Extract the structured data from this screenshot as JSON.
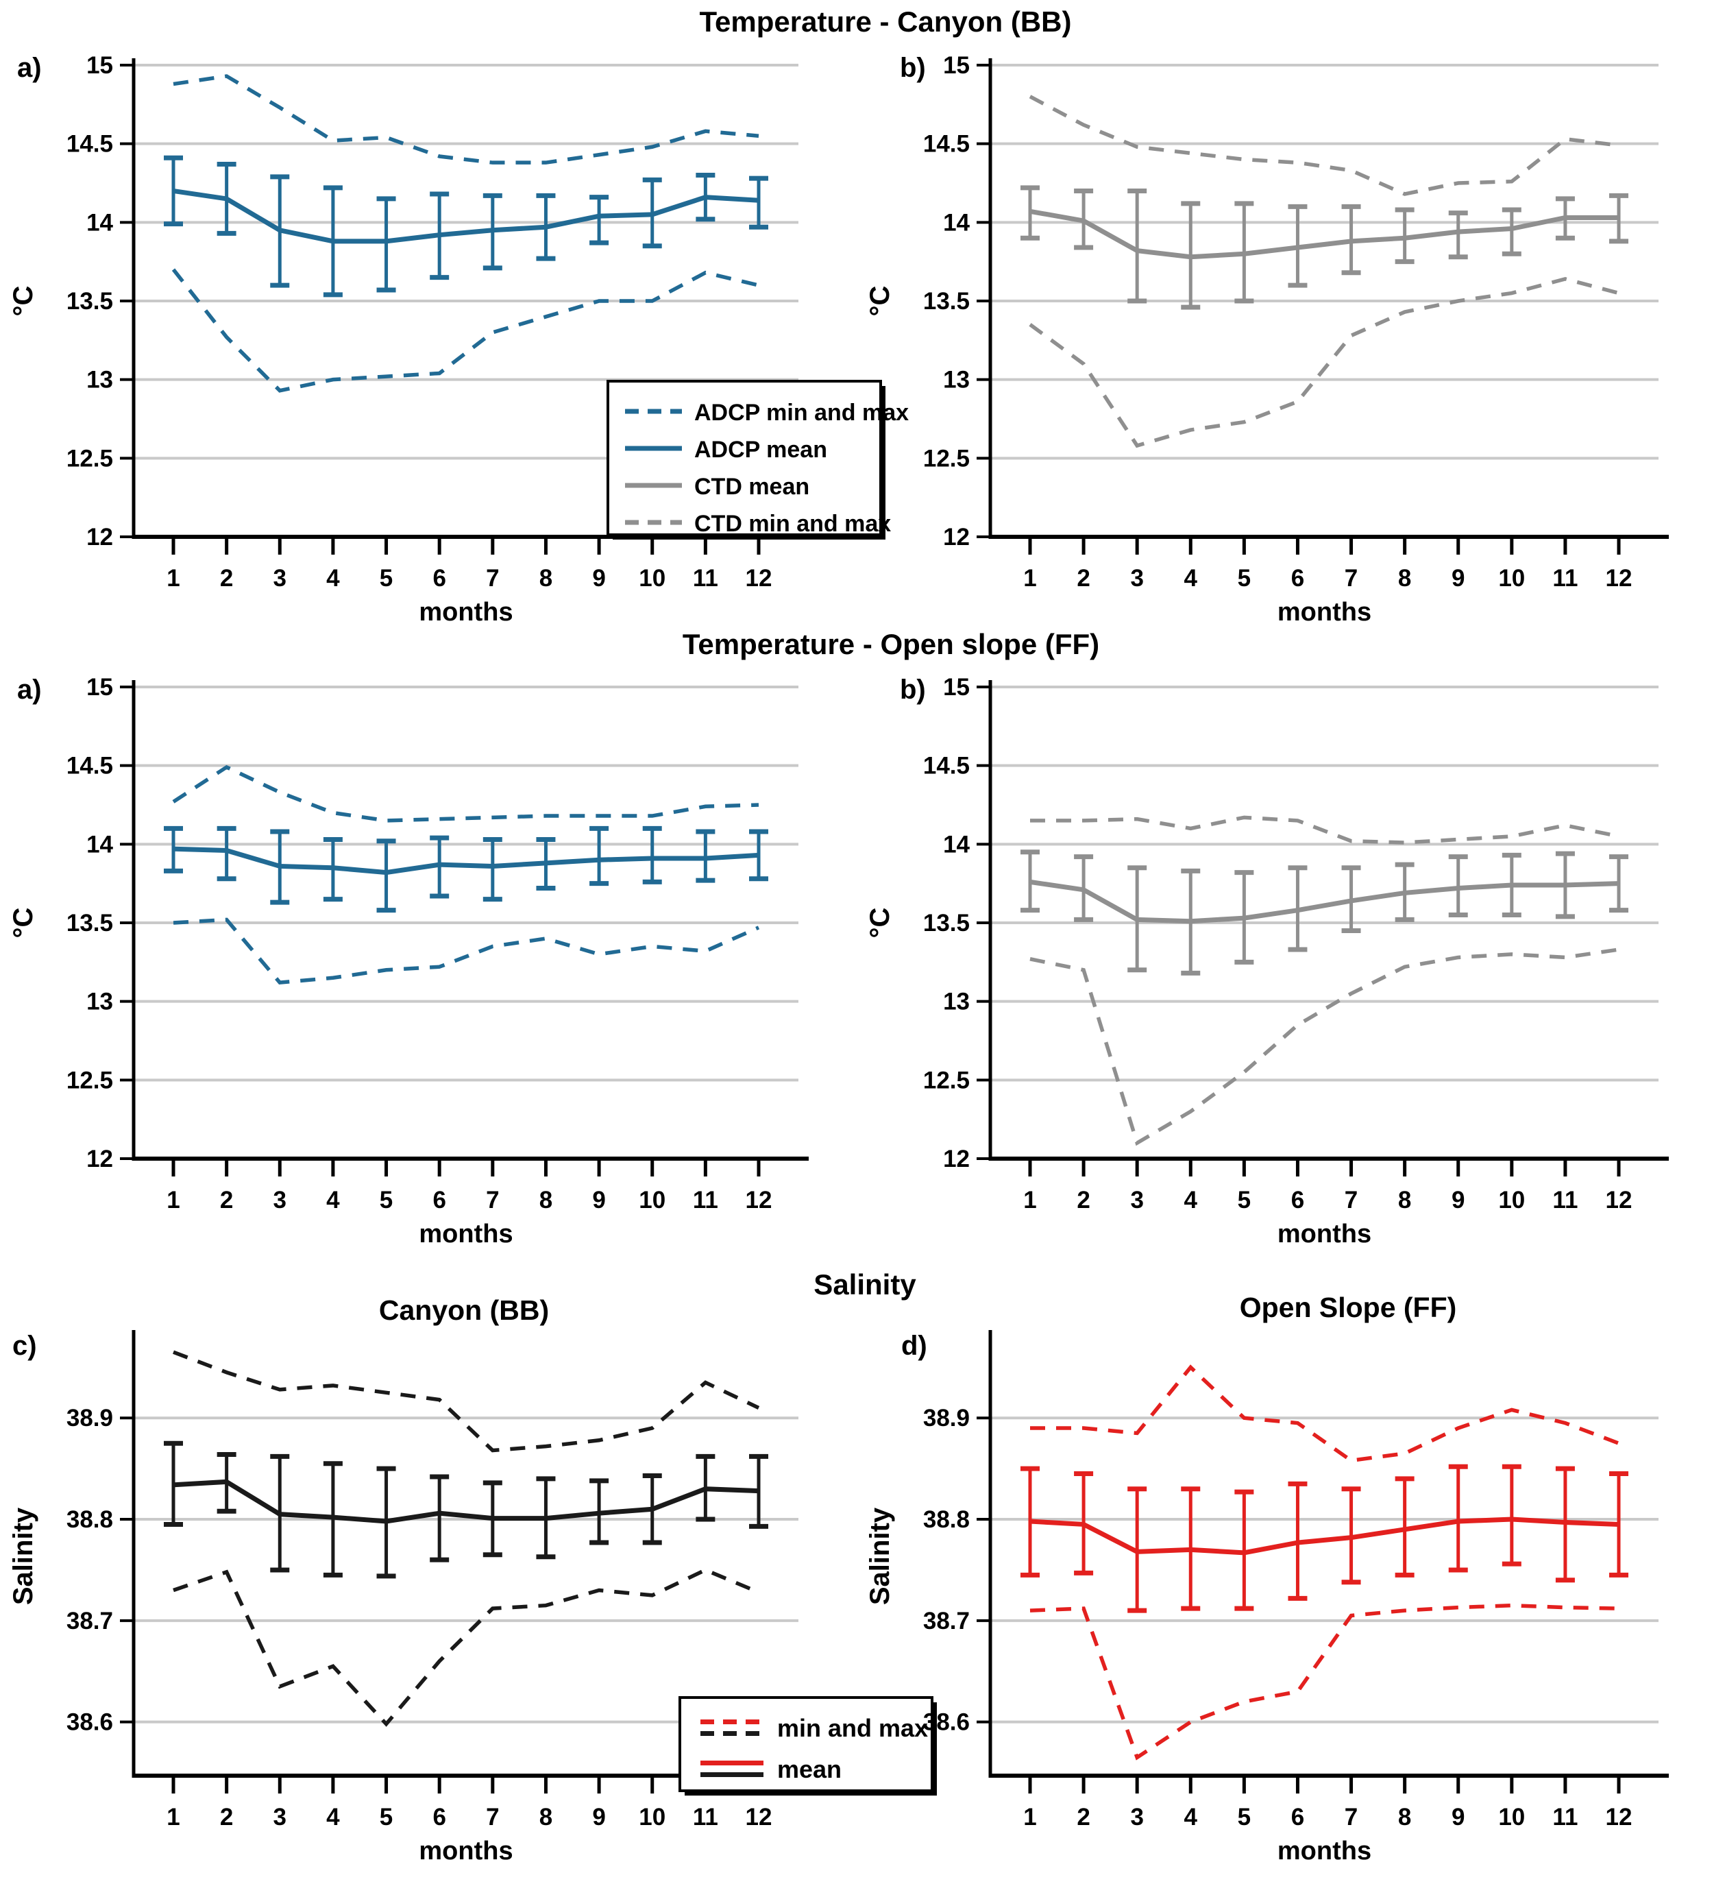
{
  "titles": {
    "row1": "Temperature - Canyon (BB)",
    "row2": "Temperature - Open slope (FF)",
    "row3": "Salinity",
    "row3_left": "Canyon (BB)",
    "row3_right": "Open Slope (FF)"
  },
  "colors": {
    "adcp_blue": "#216A94",
    "ctd_gray": "#8F8F8F",
    "salinity_black": "#1A1A1A",
    "salinity_red": "#E3201E",
    "grid": "#C9C9C9",
    "axis": "#000000"
  },
  "chart_data": [
    {
      "id": "temperature-canyon-bb-adcp",
      "panel_label": "a)",
      "type": "line",
      "title": "Temperature - Canyon (BB)",
      "xlabel": "months",
      "ylabel": "°C",
      "x": [
        1,
        2,
        3,
        4,
        5,
        6,
        7,
        8,
        9,
        10,
        11,
        12
      ],
      "x_labels": [
        "1",
        "2",
        "3",
        "4",
        "5",
        "6",
        "7",
        "8",
        "9",
        "10",
        "11",
        "12"
      ],
      "yticks": [
        "15",
        "14.5",
        "14",
        "13.5",
        "13",
        "12.5",
        "12"
      ],
      "ylim": [
        12,
        15
      ],
      "color": "#216A94",
      "series": [
        {
          "name": "max",
          "legend_label": "ADCP min and max",
          "style": "dashed",
          "values": [
            14.88,
            14.93,
            14.73,
            14.52,
            14.54,
            14.42,
            14.38,
            14.38,
            14.43,
            14.48,
            14.58,
            14.55
          ]
        },
        {
          "name": "mean",
          "legend_label": "ADCP mean",
          "style": "solid",
          "values": [
            14.2,
            14.15,
            13.95,
            13.88,
            13.88,
            13.92,
            13.95,
            13.97,
            14.04,
            14.05,
            14.16,
            14.14
          ],
          "err_lo": [
            13.99,
            13.93,
            13.6,
            13.54,
            13.57,
            13.65,
            13.71,
            13.77,
            13.87,
            13.85,
            14.02,
            13.97
          ],
          "err_hi": [
            14.41,
            14.37,
            14.29,
            14.22,
            14.15,
            14.18,
            14.17,
            14.17,
            14.16,
            14.27,
            14.3,
            14.28
          ]
        },
        {
          "name": "min",
          "legend_label": "ADCP min and max",
          "style": "dashed",
          "values": [
            13.7,
            13.27,
            12.93,
            13.0,
            13.02,
            13.04,
            13.3,
            13.4,
            13.5,
            13.5,
            13.68,
            13.6
          ]
        }
      ],
      "legend": {
        "position": "lower right",
        "entries": [
          {
            "label": "ADCP min and max",
            "color": "#216A94",
            "style": "dashed"
          },
          {
            "label": "ADCP mean",
            "color": "#216A94",
            "style": "solid"
          },
          {
            "label": "CTD mean",
            "color": "#8F8F8F",
            "style": "solid"
          },
          {
            "label": "CTD min and max",
            "color": "#8F8F8F",
            "style": "dashed"
          }
        ]
      }
    },
    {
      "id": "temperature-canyon-bb-ctd",
      "panel_label": "b)",
      "type": "line",
      "title": "Temperature - Canyon (BB)",
      "xlabel": "months",
      "ylabel": "°C",
      "x": [
        1,
        2,
        3,
        4,
        5,
        6,
        7,
        8,
        9,
        10,
        11,
        12
      ],
      "x_labels": [
        "1",
        "2",
        "3",
        "4",
        "5",
        "6",
        "7",
        "8",
        "9",
        "10",
        "11",
        "12"
      ],
      "yticks": [
        "15",
        "14.5",
        "14",
        "13.5",
        "13",
        "12.5",
        "12"
      ],
      "ylim": [
        12,
        15
      ],
      "color": "#8F8F8F",
      "series": [
        {
          "name": "max",
          "legend_label": "CTD min and max",
          "style": "dashed",
          "values": [
            14.8,
            14.62,
            14.48,
            14.44,
            14.4,
            14.38,
            14.33,
            14.18,
            14.25,
            14.26,
            14.53,
            14.49
          ]
        },
        {
          "name": "mean",
          "legend_label": "CTD mean",
          "style": "solid",
          "values": [
            14.07,
            14.01,
            13.82,
            13.78,
            13.8,
            13.84,
            13.88,
            13.9,
            13.94,
            13.96,
            14.03,
            14.03
          ],
          "err_lo": [
            13.9,
            13.84,
            13.5,
            13.46,
            13.5,
            13.6,
            13.68,
            13.75,
            13.78,
            13.8,
            13.9,
            13.88
          ],
          "err_hi": [
            14.22,
            14.2,
            14.2,
            14.12,
            14.12,
            14.1,
            14.1,
            14.08,
            14.06,
            14.08,
            14.15,
            14.17
          ]
        },
        {
          "name": "min",
          "legend_label": "CTD min and max",
          "style": "dashed",
          "values": [
            13.35,
            13.1,
            12.58,
            12.68,
            12.73,
            12.86,
            13.28,
            13.43,
            13.5,
            13.55,
            13.64,
            13.55
          ]
        }
      ]
    },
    {
      "id": "temperature-open-slope-ff-adcp",
      "panel_label": "a)",
      "type": "line",
      "title": "Temperature - Open slope (FF)",
      "xlabel": "months",
      "ylabel": "°C",
      "x": [
        1,
        2,
        3,
        4,
        5,
        6,
        7,
        8,
        9,
        10,
        11,
        12
      ],
      "x_labels": [
        "1",
        "2",
        "3",
        "4",
        "5",
        "6",
        "7",
        "8",
        "9",
        "10",
        "11",
        "12"
      ],
      "yticks": [
        "15",
        "14.5",
        "14",
        "13.5",
        "13",
        "12.5",
        "12"
      ],
      "ylim": [
        12,
        15
      ],
      "color": "#216A94",
      "series": [
        {
          "name": "max",
          "legend_label": "ADCP min and max",
          "style": "dashed",
          "values": [
            14.27,
            14.49,
            14.33,
            14.2,
            14.15,
            14.16,
            14.17,
            14.18,
            14.18,
            14.18,
            14.24,
            14.25
          ]
        },
        {
          "name": "mean",
          "legend_label": "ADCP mean",
          "style": "solid",
          "values": [
            13.97,
            13.96,
            13.86,
            13.85,
            13.82,
            13.87,
            13.86,
            13.88,
            13.9,
            13.91,
            13.91,
            13.93
          ],
          "err_lo": [
            13.83,
            13.78,
            13.63,
            13.65,
            13.58,
            13.67,
            13.65,
            13.72,
            13.75,
            13.76,
            13.77,
            13.78
          ],
          "err_hi": [
            14.1,
            14.1,
            14.08,
            14.03,
            14.02,
            14.04,
            14.03,
            14.03,
            14.1,
            14.1,
            14.08,
            14.08
          ]
        },
        {
          "name": "min",
          "legend_label": "ADCP min and max",
          "style": "dashed",
          "values": [
            13.5,
            13.52,
            13.12,
            13.15,
            13.2,
            13.22,
            13.35,
            13.4,
            13.3,
            13.35,
            13.32,
            13.47
          ]
        }
      ]
    },
    {
      "id": "temperature-open-slope-ff-ctd",
      "panel_label": "b)",
      "type": "line",
      "title": "Temperature - Open slope (FF)",
      "xlabel": "months",
      "ylabel": "°C",
      "x": [
        1,
        2,
        3,
        4,
        5,
        6,
        7,
        8,
        9,
        10,
        11,
        12
      ],
      "x_labels": [
        "1",
        "2",
        "3",
        "4",
        "5",
        "6",
        "7",
        "8",
        "9",
        "10",
        "11",
        "12"
      ],
      "yticks": [
        "15",
        "14.5",
        "14",
        "13.5",
        "13",
        "12.5",
        "12"
      ],
      "ylim": [
        12,
        15
      ],
      "color": "#8F8F8F",
      "series": [
        {
          "name": "max",
          "legend_label": "CTD min and max",
          "style": "dashed",
          "values": [
            14.15,
            14.15,
            14.16,
            14.1,
            14.17,
            14.15,
            14.02,
            14.01,
            14.03,
            14.05,
            14.12,
            14.05
          ]
        },
        {
          "name": "mean",
          "legend_label": "CTD mean",
          "style": "solid",
          "values": [
            13.76,
            13.71,
            13.52,
            13.51,
            13.53,
            13.58,
            13.64,
            13.69,
            13.72,
            13.74,
            13.74,
            13.75
          ],
          "err_lo": [
            13.58,
            13.52,
            13.2,
            13.18,
            13.25,
            13.33,
            13.45,
            13.52,
            13.55,
            13.55,
            13.54,
            13.58
          ],
          "err_hi": [
            13.95,
            13.92,
            13.85,
            13.83,
            13.82,
            13.85,
            13.85,
            13.87,
            13.92,
            13.93,
            13.94,
            13.92
          ]
        },
        {
          "name": "min",
          "legend_label": "CTD min and max",
          "style": "dashed",
          "values": [
            13.27,
            13.2,
            12.1,
            12.3,
            12.55,
            12.85,
            13.05,
            13.22,
            13.28,
            13.3,
            13.28,
            13.33
          ]
        }
      ]
    },
    {
      "id": "salinity-canyon-bb",
      "panel_label": "c)",
      "type": "line",
      "title": "Canyon (BB)",
      "xlabel": "months",
      "ylabel": "Salinity",
      "x": [
        1,
        2,
        3,
        4,
        5,
        6,
        7,
        8,
        9,
        10,
        11,
        12
      ],
      "x_labels": [
        "1",
        "2",
        "3",
        "4",
        "5",
        "6",
        "7",
        "8",
        "9",
        "10",
        "11",
        "12"
      ],
      "yticks": [
        "38.9",
        "38.8",
        "38.7",
        "38.6"
      ],
      "ylim": [
        38.547,
        38.98
      ],
      "color": "#1A1A1A",
      "series": [
        {
          "name": "max",
          "legend_label": "min and max",
          "style": "dashed",
          "values": [
            38.965,
            38.945,
            38.928,
            38.932,
            38.925,
            38.918,
            38.868,
            38.872,
            38.878,
            38.89,
            38.935,
            38.91
          ]
        },
        {
          "name": "mean",
          "legend_label": "mean",
          "style": "solid",
          "values": [
            38.834,
            38.837,
            38.805,
            38.802,
            38.798,
            38.806,
            38.801,
            38.801,
            38.806,
            38.81,
            38.83,
            38.828
          ],
          "err_lo": [
            38.795,
            38.808,
            38.75,
            38.745,
            38.744,
            38.76,
            38.765,
            38.763,
            38.777,
            38.777,
            38.8,
            38.793
          ],
          "err_hi": [
            38.875,
            38.864,
            38.862,
            38.855,
            38.85,
            38.842,
            38.836,
            38.84,
            38.838,
            38.843,
            38.862,
            38.862
          ]
        },
        {
          "name": "min",
          "legend_label": "min and max",
          "style": "dashed",
          "values": [
            38.73,
            38.748,
            38.635,
            38.655,
            38.598,
            38.66,
            38.712,
            38.715,
            38.73,
            38.725,
            38.75,
            38.728
          ]
        }
      ],
      "legend": {
        "position": "lower right",
        "entries": [
          {
            "label": "min and max",
            "colors": [
              "#E3201E",
              "#1A1A1A"
            ],
            "style": "dashed"
          },
          {
            "label": "mean",
            "colors": [
              "#E3201E",
              "#1A1A1A"
            ],
            "style": "solid"
          }
        ]
      }
    },
    {
      "id": "salinity-open-slope-ff",
      "panel_label": "d)",
      "type": "line",
      "title": "Open Slope (FF)",
      "xlabel": "months",
      "ylabel": "Salinity",
      "x": [
        1,
        2,
        3,
        4,
        5,
        6,
        7,
        8,
        9,
        10,
        11,
        12
      ],
      "x_labels": [
        "1",
        "2",
        "3",
        "4",
        "5",
        "6",
        "7",
        "8",
        "9",
        "10",
        "11",
        "12"
      ],
      "yticks": [
        "38.9",
        "38.8",
        "38.7",
        "38.6"
      ],
      "ylim": [
        38.547,
        38.98
      ],
      "color": "#E3201E",
      "series": [
        {
          "name": "max",
          "legend_label": "min and max",
          "style": "dashed",
          "values": [
            38.89,
            38.89,
            38.885,
            38.95,
            38.9,
            38.895,
            38.858,
            38.865,
            38.89,
            38.908,
            38.895,
            38.875
          ]
        },
        {
          "name": "mean",
          "legend_label": "mean",
          "style": "solid",
          "values": [
            38.798,
            38.795,
            38.768,
            38.77,
            38.767,
            38.777,
            38.782,
            38.79,
            38.798,
            38.8,
            38.797,
            38.795
          ],
          "err_lo": [
            38.745,
            38.747,
            38.71,
            38.712,
            38.712,
            38.722,
            38.738,
            38.745,
            38.75,
            38.756,
            38.74,
            38.745
          ],
          "err_hi": [
            38.85,
            38.845,
            38.83,
            38.83,
            38.827,
            38.835,
            38.83,
            38.84,
            38.852,
            38.852,
            38.85,
            38.845
          ]
        },
        {
          "name": "min",
          "legend_label": "min and max",
          "style": "dashed",
          "values": [
            38.71,
            38.712,
            38.565,
            38.6,
            38.62,
            38.63,
            38.705,
            38.71,
            38.713,
            38.715,
            38.713,
            38.712
          ]
        }
      ]
    }
  ]
}
